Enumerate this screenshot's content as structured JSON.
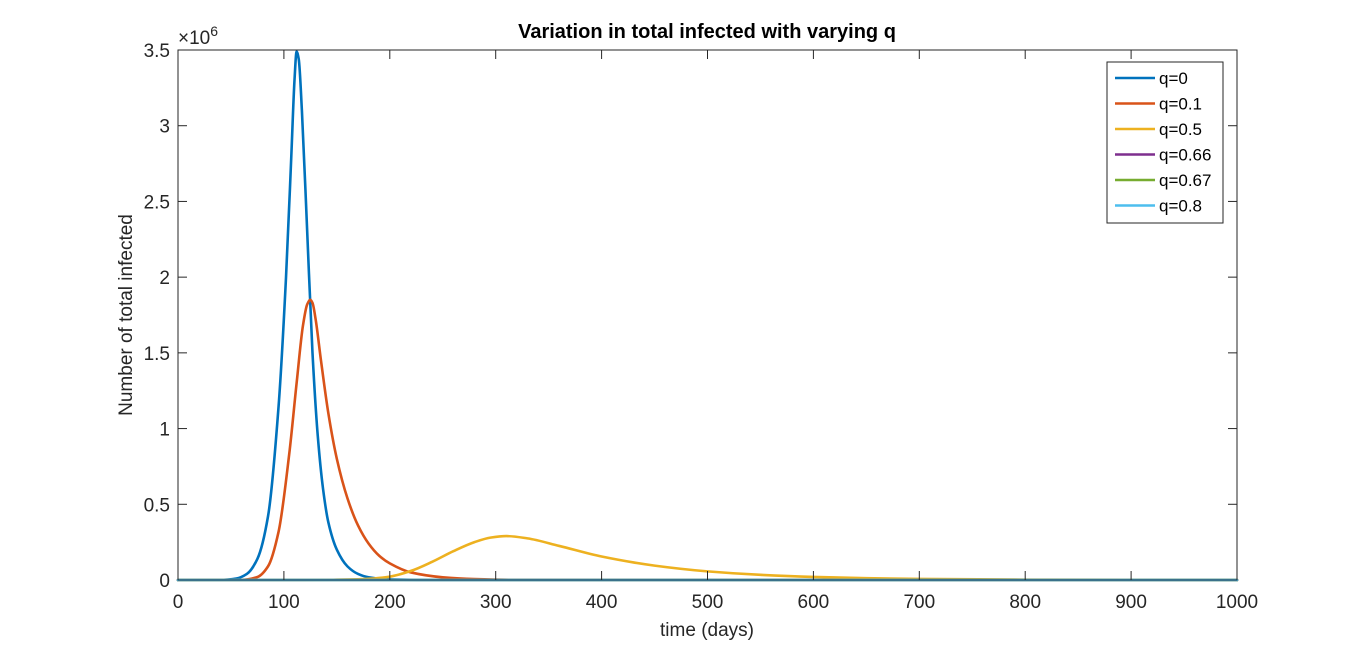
{
  "chart_data": {
    "type": "line",
    "title": "Variation in total infected with varying q",
    "xlabel": "time (days)",
    "ylabel": "Number of total infected",
    "y_exponent_label": "×10",
    "y_exponent": "6",
    "xlim": [
      0,
      1000
    ],
    "ylim": [
      0,
      3500000
    ],
    "xticks": [
      0,
      100,
      200,
      300,
      400,
      500,
      600,
      700,
      800,
      900,
      1000
    ],
    "xtick_labels": [
      "0",
      "100",
      "200",
      "300",
      "400",
      "500",
      "600",
      "700",
      "800",
      "900",
      "1000"
    ],
    "yticks": [
      0,
      500000,
      1000000,
      1500000,
      2000000,
      2500000,
      3000000,
      3500000
    ],
    "ytick_labels": [
      "0",
      "0.5",
      "1",
      "1.5",
      "2",
      "2.5",
      "3",
      "3.5"
    ],
    "grid": false,
    "legend_position": "top-right",
    "series": [
      {
        "name": "q=0",
        "color": "#0072BD",
        "x": [
          0,
          40,
          55,
          65,
          75,
          85,
          95,
          102,
          107,
          110,
          112,
          114,
          117,
          122,
          127,
          132,
          137,
          142,
          150,
          160,
          170,
          180,
          200,
          250,
          1000
        ],
        "y": [
          0,
          1000,
          10000,
          40000,
          140000,
          420000,
          1150000,
          2000000,
          2800000,
          3300000,
          3490000,
          3440000,
          3100000,
          2300000,
          1500000,
          950000,
          600000,
          380000,
          200000,
          90000,
          40000,
          18000,
          4000,
          0,
          0
        ]
      },
      {
        "name": "q=0.1",
        "color": "#D95319",
        "x": [
          0,
          60,
          75,
          85,
          95,
          105,
          112,
          118,
          122,
          125,
          127,
          130,
          135,
          142,
          150,
          160,
          170,
          180,
          190,
          200,
          220,
          250,
          280,
          320,
          1000
        ],
        "y": [
          0,
          1000,
          20000,
          90000,
          320000,
          830000,
          1300000,
          1680000,
          1820000,
          1850000,
          1830000,
          1720000,
          1450000,
          1100000,
          800000,
          540000,
          360000,
          240000,
          160000,
          110000,
          50000,
          18000,
          6000,
          1000,
          0
        ]
      },
      {
        "name": "q=0.5",
        "color": "#EDB120",
        "x": [
          0,
          120,
          150,
          170,
          185,
          200,
          220,
          240,
          260,
          280,
          295,
          310,
          330,
          360,
          400,
          450,
          500,
          550,
          600,
          650,
          700,
          800,
          900,
          1000
        ],
        "y": [
          0,
          0,
          2000,
          5000,
          10000,
          22000,
          60000,
          120000,
          190000,
          250000,
          280000,
          290000,
          275000,
          225000,
          155000,
          95000,
          57000,
          34000,
          20000,
          12000,
          7000,
          2500,
          900,
          300
        ]
      },
      {
        "name": "q=0.66",
        "color": "#7E2F8E",
        "x": [
          0,
          1000
        ],
        "y": [
          0,
          0
        ]
      },
      {
        "name": "q=0.67",
        "color": "#77AC30",
        "x": [
          0,
          1000
        ],
        "y": [
          0,
          0
        ]
      },
      {
        "name": "q=0.8",
        "color": "#4DBEEE",
        "x": [
          0,
          1000
        ],
        "y": [
          0,
          0
        ]
      }
    ]
  }
}
